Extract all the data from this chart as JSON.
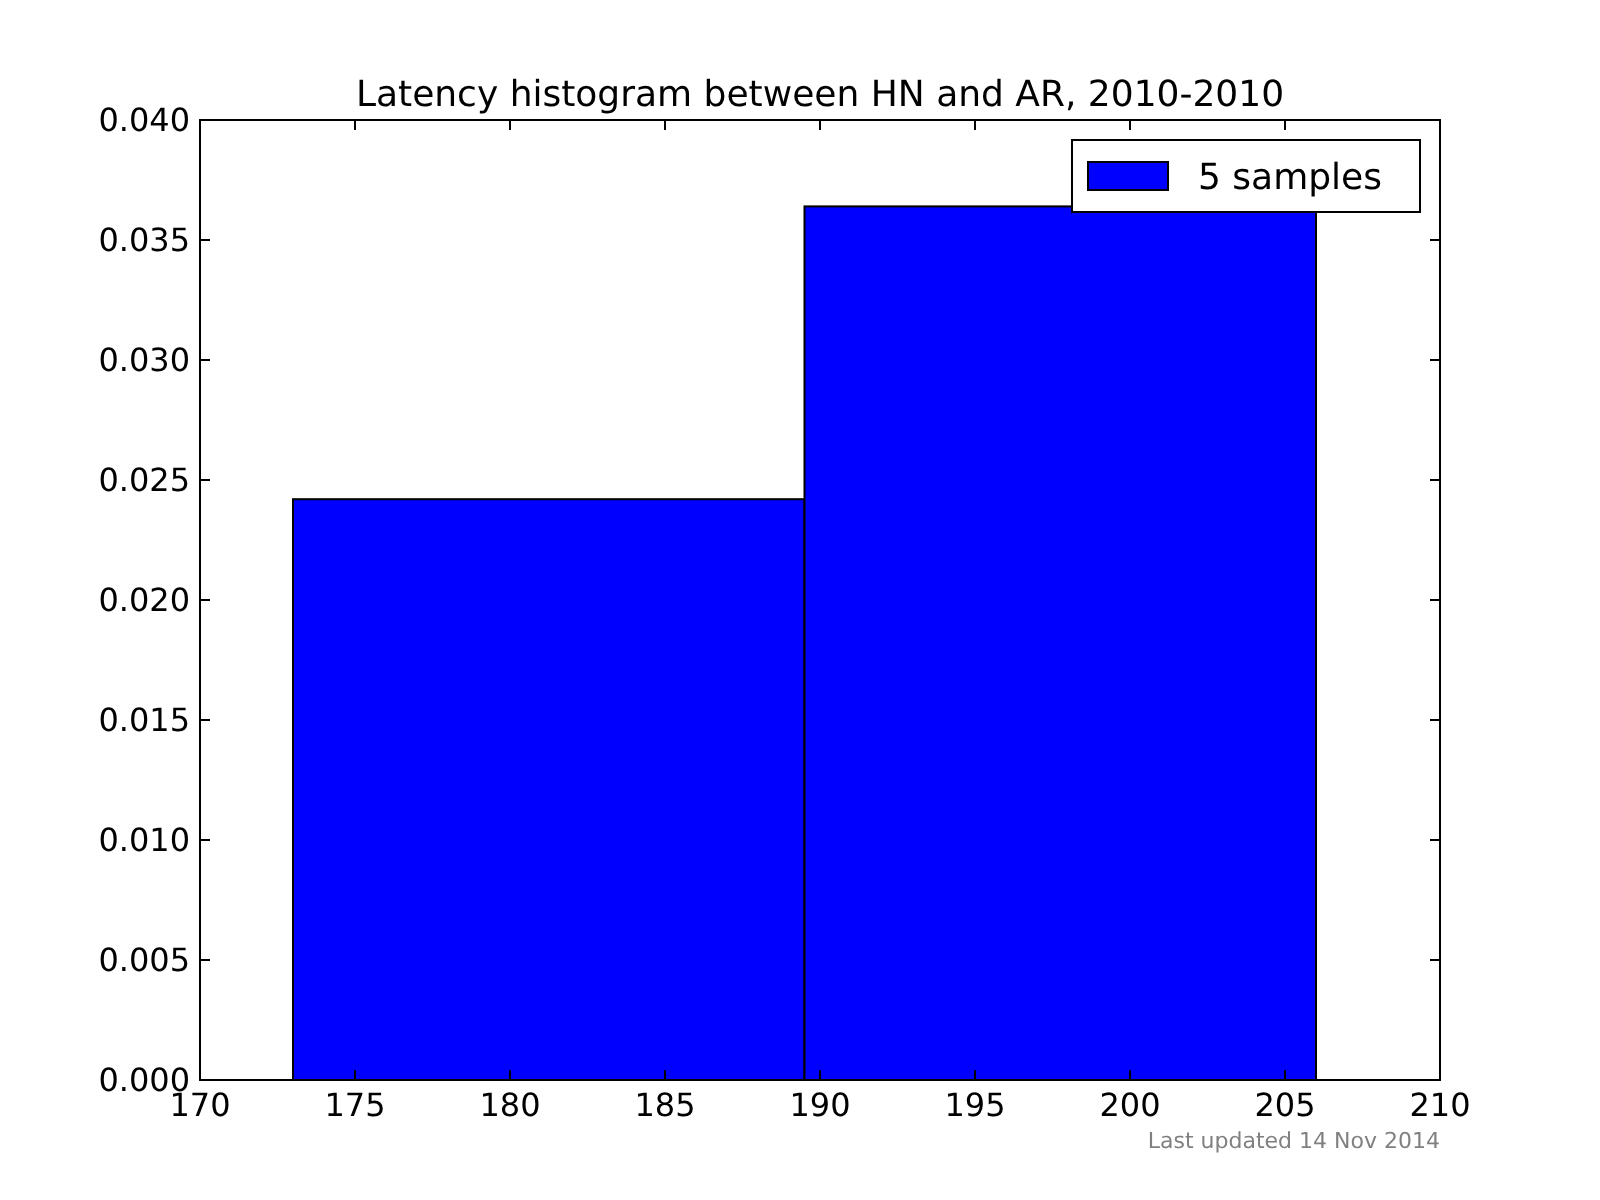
{
  "chart_data": {
    "type": "histogram",
    "title": "Latency histogram between HN and AR, 2010-2010",
    "bins": [
      173.0,
      189.5,
      206.0
    ],
    "series": [
      {
        "name": "5 samples",
        "color": "#0000ff",
        "values": [
          0.0242,
          0.0364
        ]
      }
    ],
    "xlim": [
      170,
      210
    ],
    "xticks": [
      170,
      175,
      180,
      185,
      190,
      195,
      200,
      205,
      210
    ],
    "ylim": [
      0,
      0.04
    ],
    "yticks": [
      {
        "value": 0,
        "label": "0.000"
      },
      {
        "value": 0.005,
        "label": "0.005"
      },
      {
        "value": 0.01,
        "label": "0.010"
      },
      {
        "value": 0.015,
        "label": "0.015"
      },
      {
        "value": 0.02,
        "label": "0.020"
      },
      {
        "value": 0.025,
        "label": "0.025"
      },
      {
        "value": 0.03,
        "label": "0.030"
      },
      {
        "value": 0.035,
        "label": "0.035"
      },
      {
        "value": 0.04,
        "label": "0.040"
      }
    ],
    "legend": "top right",
    "grid": false,
    "annotations": [
      "Last updated 14 Nov 2014"
    ]
  }
}
